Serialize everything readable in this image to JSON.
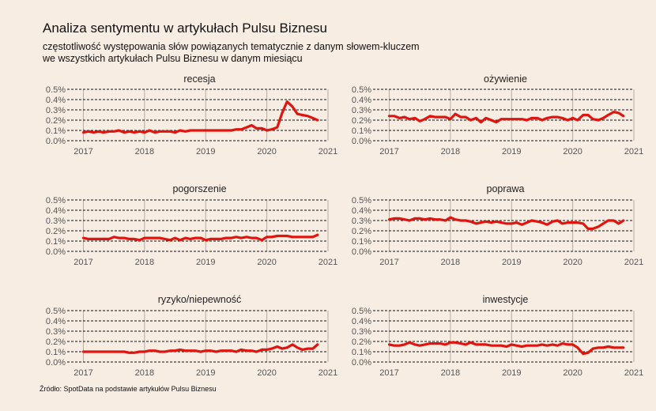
{
  "title": "Analiza sentymentu w artykułach Pulsu Biznesu",
  "subtitle_line1": "częstotliwość występowania słów powiązanych tematycznie z danym słowem-kluczem",
  "subtitle_line2": "we wszystkich artykułach Pulsu Biznesu w danym miesiącu",
  "caption": "Źródło: SpotData na podstawie artykułów Pulsu Biznesu",
  "colors": {
    "line": "#e0150f",
    "background": "#f7ede2",
    "grid": "#111111",
    "vgrid": "#b5aca4"
  },
  "chart_data": [
    {
      "type": "line",
      "title": "recesja",
      "x_ticks": [
        "2017",
        "2018",
        "2019",
        "2020",
        "2021"
      ],
      "y_ticks": [
        "0.0%",
        "0.1%",
        "0.2%",
        "0.3%",
        "0.4%",
        "0.5%"
      ],
      "xlim": [
        2016.8,
        2021.0
      ],
      "ylim": [
        0,
        0.5
      ],
      "grid": true,
      "x": [
        2017.0,
        2017.08,
        2017.17,
        2017.25,
        2017.33,
        2017.42,
        2017.5,
        2017.58,
        2017.67,
        2017.75,
        2017.83,
        2017.92,
        2018.0,
        2018.08,
        2018.17,
        2018.25,
        2018.33,
        2018.42,
        2018.5,
        2018.58,
        2018.67,
        2018.75,
        2018.83,
        2018.92,
        2019.0,
        2019.08,
        2019.17,
        2019.25,
        2019.33,
        2019.42,
        2019.5,
        2019.58,
        2019.67,
        2019.75,
        2019.83,
        2019.92,
        2020.0,
        2020.08,
        2020.17,
        2020.25,
        2020.33,
        2020.42,
        2020.5,
        2020.58,
        2020.67,
        2020.75,
        2020.83
      ],
      "values": [
        0.08,
        0.09,
        0.08,
        0.09,
        0.08,
        0.09,
        0.09,
        0.1,
        0.08,
        0.09,
        0.08,
        0.09,
        0.08,
        0.1,
        0.08,
        0.09,
        0.09,
        0.09,
        0.08,
        0.1,
        0.09,
        0.1,
        0.1,
        0.1,
        0.1,
        0.1,
        0.1,
        0.1,
        0.1,
        0.1,
        0.11,
        0.11,
        0.13,
        0.15,
        0.12,
        0.12,
        0.1,
        0.11,
        0.13,
        0.27,
        0.38,
        0.33,
        0.26,
        0.25,
        0.24,
        0.22,
        0.2
      ]
    },
    {
      "type": "line",
      "title": "ożywienie",
      "x_ticks": [
        "2017",
        "2018",
        "2019",
        "2020",
        "2021"
      ],
      "y_ticks": [
        "0.0%",
        "0.1%",
        "0.2%",
        "0.3%",
        "0.4%",
        "0.5%"
      ],
      "xlim": [
        2016.8,
        2021.0
      ],
      "ylim": [
        0,
        0.5
      ],
      "grid": true,
      "x": [
        2017.0,
        2017.08,
        2017.17,
        2017.25,
        2017.33,
        2017.42,
        2017.5,
        2017.58,
        2017.67,
        2017.75,
        2017.83,
        2017.92,
        2018.0,
        2018.08,
        2018.17,
        2018.25,
        2018.33,
        2018.42,
        2018.5,
        2018.58,
        2018.67,
        2018.75,
        2018.83,
        2018.92,
        2019.0,
        2019.08,
        2019.17,
        2019.25,
        2019.33,
        2019.42,
        2019.5,
        2019.58,
        2019.67,
        2019.75,
        2019.83,
        2019.92,
        2020.0,
        2020.08,
        2020.17,
        2020.25,
        2020.33,
        2020.42,
        2020.5,
        2020.58,
        2020.67,
        2020.75,
        2020.83
      ],
      "values": [
        0.24,
        0.24,
        0.22,
        0.23,
        0.21,
        0.22,
        0.19,
        0.21,
        0.24,
        0.23,
        0.23,
        0.23,
        0.21,
        0.26,
        0.23,
        0.23,
        0.2,
        0.22,
        0.18,
        0.22,
        0.2,
        0.18,
        0.21,
        0.21,
        0.21,
        0.21,
        0.21,
        0.2,
        0.22,
        0.22,
        0.2,
        0.22,
        0.23,
        0.23,
        0.22,
        0.2,
        0.22,
        0.2,
        0.25,
        0.25,
        0.21,
        0.2,
        0.22,
        0.25,
        0.28,
        0.27,
        0.24
      ]
    },
    {
      "type": "line",
      "title": "pogorszenie",
      "x_ticks": [
        "2017",
        "2018",
        "2019",
        "2020",
        "2021"
      ],
      "y_ticks": [
        "0.0%",
        "0.1%",
        "0.2%",
        "0.3%",
        "0.4%",
        "0.5%"
      ],
      "xlim": [
        2016.8,
        2021.0
      ],
      "ylim": [
        0,
        0.5
      ],
      "grid": true,
      "x": [
        2017.0,
        2017.08,
        2017.17,
        2017.25,
        2017.33,
        2017.42,
        2017.5,
        2017.58,
        2017.67,
        2017.75,
        2017.83,
        2017.92,
        2018.0,
        2018.08,
        2018.17,
        2018.25,
        2018.33,
        2018.42,
        2018.5,
        2018.58,
        2018.67,
        2018.75,
        2018.83,
        2018.92,
        2019.0,
        2019.08,
        2019.17,
        2019.25,
        2019.33,
        2019.42,
        2019.5,
        2019.58,
        2019.67,
        2019.75,
        2019.83,
        2019.92,
        2020.0,
        2020.08,
        2020.17,
        2020.25,
        2020.33,
        2020.42,
        2020.5,
        2020.58,
        2020.67,
        2020.75,
        2020.83
      ],
      "values": [
        0.13,
        0.12,
        0.12,
        0.12,
        0.12,
        0.12,
        0.14,
        0.13,
        0.13,
        0.12,
        0.12,
        0.11,
        0.13,
        0.13,
        0.13,
        0.13,
        0.12,
        0.11,
        0.13,
        0.11,
        0.13,
        0.12,
        0.13,
        0.13,
        0.11,
        0.12,
        0.12,
        0.12,
        0.13,
        0.13,
        0.14,
        0.13,
        0.14,
        0.13,
        0.13,
        0.11,
        0.14,
        0.14,
        0.15,
        0.15,
        0.15,
        0.14,
        0.14,
        0.14,
        0.14,
        0.14,
        0.16
      ]
    },
    {
      "type": "line",
      "title": "poprawa",
      "x_ticks": [
        "2017",
        "2018",
        "2019",
        "2020",
        "2021"
      ],
      "y_ticks": [
        "0.0%",
        "0.1%",
        "0.2%",
        "0.3%",
        "0.4%",
        "0.5%"
      ],
      "xlim": [
        2016.8,
        2021.0
      ],
      "ylim": [
        0,
        0.5
      ],
      "grid": true,
      "x": [
        2017.0,
        2017.08,
        2017.17,
        2017.25,
        2017.33,
        2017.42,
        2017.5,
        2017.58,
        2017.67,
        2017.75,
        2017.83,
        2017.92,
        2018.0,
        2018.08,
        2018.17,
        2018.25,
        2018.33,
        2018.42,
        2018.5,
        2018.58,
        2018.67,
        2018.75,
        2018.83,
        2018.92,
        2019.0,
        2019.08,
        2019.17,
        2019.25,
        2019.33,
        2019.42,
        2019.5,
        2019.58,
        2019.67,
        2019.75,
        2019.83,
        2019.92,
        2020.0,
        2020.08,
        2020.17,
        2020.25,
        2020.33,
        2020.42,
        2020.5,
        2020.58,
        2020.67,
        2020.75,
        2020.83
      ],
      "values": [
        0.31,
        0.32,
        0.32,
        0.31,
        0.3,
        0.32,
        0.32,
        0.31,
        0.32,
        0.31,
        0.31,
        0.3,
        0.33,
        0.31,
        0.3,
        0.3,
        0.29,
        0.27,
        0.28,
        0.29,
        0.28,
        0.29,
        0.28,
        0.27,
        0.27,
        0.28,
        0.26,
        0.28,
        0.3,
        0.29,
        0.28,
        0.26,
        0.29,
        0.3,
        0.27,
        0.28,
        0.28,
        0.28,
        0.27,
        0.22,
        0.22,
        0.24,
        0.27,
        0.3,
        0.3,
        0.27,
        0.3
      ]
    },
    {
      "type": "line",
      "title": "ryzyko/niepewność",
      "x_ticks": [
        "2017",
        "2018",
        "2019",
        "2020",
        "2021"
      ],
      "y_ticks": [
        "0.0%",
        "0.1%",
        "0.2%",
        "0.3%",
        "0.4%",
        "0.5%"
      ],
      "xlim": [
        2016.8,
        2021.0
      ],
      "ylim": [
        0,
        0.5
      ],
      "grid": true,
      "x": [
        2017.0,
        2017.08,
        2017.17,
        2017.25,
        2017.33,
        2017.42,
        2017.5,
        2017.58,
        2017.67,
        2017.75,
        2017.83,
        2017.92,
        2018.0,
        2018.08,
        2018.17,
        2018.25,
        2018.33,
        2018.42,
        2018.5,
        2018.58,
        2018.67,
        2018.75,
        2018.83,
        2018.92,
        2019.0,
        2019.08,
        2019.17,
        2019.25,
        2019.33,
        2019.42,
        2019.5,
        2019.58,
        2019.67,
        2019.75,
        2019.83,
        2019.92,
        2020.0,
        2020.08,
        2020.17,
        2020.25,
        2020.33,
        2020.42,
        2020.5,
        2020.58,
        2020.67,
        2020.75,
        2020.83
      ],
      "values": [
        0.1,
        0.1,
        0.1,
        0.1,
        0.1,
        0.1,
        0.1,
        0.1,
        0.1,
        0.09,
        0.09,
        0.1,
        0.1,
        0.11,
        0.11,
        0.1,
        0.1,
        0.11,
        0.11,
        0.12,
        0.11,
        0.11,
        0.11,
        0.1,
        0.11,
        0.11,
        0.1,
        0.11,
        0.11,
        0.11,
        0.1,
        0.12,
        0.11,
        0.11,
        0.1,
        0.12,
        0.12,
        0.13,
        0.15,
        0.13,
        0.14,
        0.17,
        0.14,
        0.12,
        0.13,
        0.13,
        0.17
      ]
    },
    {
      "type": "line",
      "title": "inwestycje",
      "x_ticks": [
        "2017",
        "2018",
        "2019",
        "2020",
        "2021"
      ],
      "y_ticks": [
        "0.0%",
        "0.1%",
        "0.2%",
        "0.3%",
        "0.4%",
        "0.5%"
      ],
      "xlim": [
        2016.8,
        2021.0
      ],
      "ylim": [
        0,
        0.5
      ],
      "grid": true,
      "x": [
        2017.0,
        2017.08,
        2017.17,
        2017.25,
        2017.33,
        2017.42,
        2017.5,
        2017.58,
        2017.67,
        2017.75,
        2017.83,
        2017.92,
        2018.0,
        2018.08,
        2018.17,
        2018.25,
        2018.33,
        2018.42,
        2018.5,
        2018.58,
        2018.67,
        2018.75,
        2018.83,
        2018.92,
        2019.0,
        2019.08,
        2019.17,
        2019.25,
        2019.33,
        2019.42,
        2019.5,
        2019.58,
        2019.67,
        2019.75,
        2019.83,
        2019.92,
        2020.0,
        2020.08,
        2020.17,
        2020.25,
        2020.33,
        2020.42,
        2020.5,
        2020.58,
        2020.67,
        2020.75,
        2020.83
      ],
      "values": [
        0.17,
        0.16,
        0.16,
        0.17,
        0.19,
        0.17,
        0.16,
        0.17,
        0.18,
        0.18,
        0.18,
        0.17,
        0.19,
        0.19,
        0.18,
        0.17,
        0.19,
        0.17,
        0.17,
        0.17,
        0.16,
        0.16,
        0.16,
        0.15,
        0.17,
        0.16,
        0.15,
        0.16,
        0.16,
        0.16,
        0.17,
        0.16,
        0.17,
        0.16,
        0.18,
        0.17,
        0.17,
        0.14,
        0.08,
        0.09,
        0.13,
        0.14,
        0.14,
        0.15,
        0.14,
        0.14,
        0.14
      ]
    }
  ]
}
